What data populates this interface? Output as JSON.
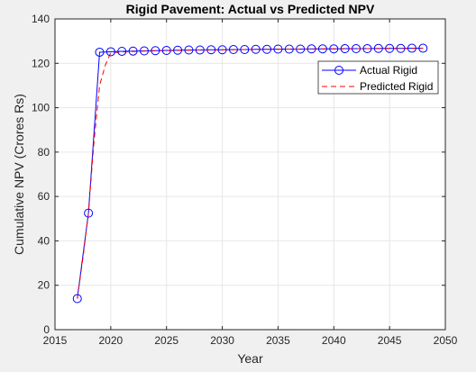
{
  "chart_data": {
    "type": "line",
    "title": "Rigid Pavement: Actual vs Predicted NPV",
    "xlabel": "Year",
    "ylabel": "Cumulative NPV (Crores Rs)",
    "xlim": [
      2015,
      2050
    ],
    "ylim": [
      0,
      140
    ],
    "xticks": [
      2015,
      2020,
      2025,
      2030,
      2035,
      2040,
      2045,
      2050
    ],
    "yticks": [
      0,
      20,
      40,
      60,
      80,
      100,
      120,
      140
    ],
    "grid": true,
    "legend_position": "top-right",
    "x": [
      2017,
      2018,
      2019,
      2020,
      2021,
      2022,
      2023,
      2024,
      2025,
      2026,
      2027,
      2028,
      2029,
      2030,
      2031,
      2032,
      2033,
      2034,
      2035,
      2036,
      2037,
      2038,
      2039,
      2040,
      2041,
      2042,
      2043,
      2044,
      2045,
      2046,
      2047,
      2048
    ],
    "series": [
      {
        "name": "Actual Rigid",
        "color": "#0000ff",
        "line_style": "solid",
        "marker": "circle",
        "values": [
          14,
          52.5,
          125,
          125.2,
          125.4,
          125.5,
          125.6,
          125.7,
          125.8,
          125.9,
          126.0,
          126.0,
          126.1,
          126.1,
          126.2,
          126.2,
          126.3,
          126.3,
          126.4,
          126.4,
          126.4,
          126.5,
          126.5,
          126.5,
          126.6,
          126.6,
          126.6,
          126.7,
          126.7,
          126.7,
          126.8,
          126.8
        ]
      },
      {
        "name": "Predicted Rigid",
        "color": "#ff0000",
        "line_style": "dashed",
        "marker": "none",
        "x": [
          2017,
          2017.5,
          2018,
          2018.5,
          2019,
          2019.5,
          2020,
          2021,
          2022,
          2023,
          2024,
          2025,
          2026,
          2027,
          2028,
          2029,
          2030,
          2031,
          2032,
          2033,
          2034,
          2035,
          2036,
          2037,
          2038,
          2039,
          2040,
          2041,
          2042,
          2043,
          2044,
          2045,
          2046,
          2047,
          2048
        ],
        "values": [
          14,
          32,
          52.5,
          85,
          110,
          119,
          124.8,
          125.1,
          125.3,
          125.5,
          125.6,
          125.7,
          125.8,
          125.9,
          126.0,
          126.0,
          126.1,
          126.1,
          126.2,
          126.2,
          126.3,
          126.3,
          126.4,
          126.4,
          126.4,
          126.5,
          126.5,
          126.5,
          126.6,
          126.6,
          126.6,
          126.7,
          126.7,
          126.7,
          126.8
        ]
      }
    ]
  }
}
